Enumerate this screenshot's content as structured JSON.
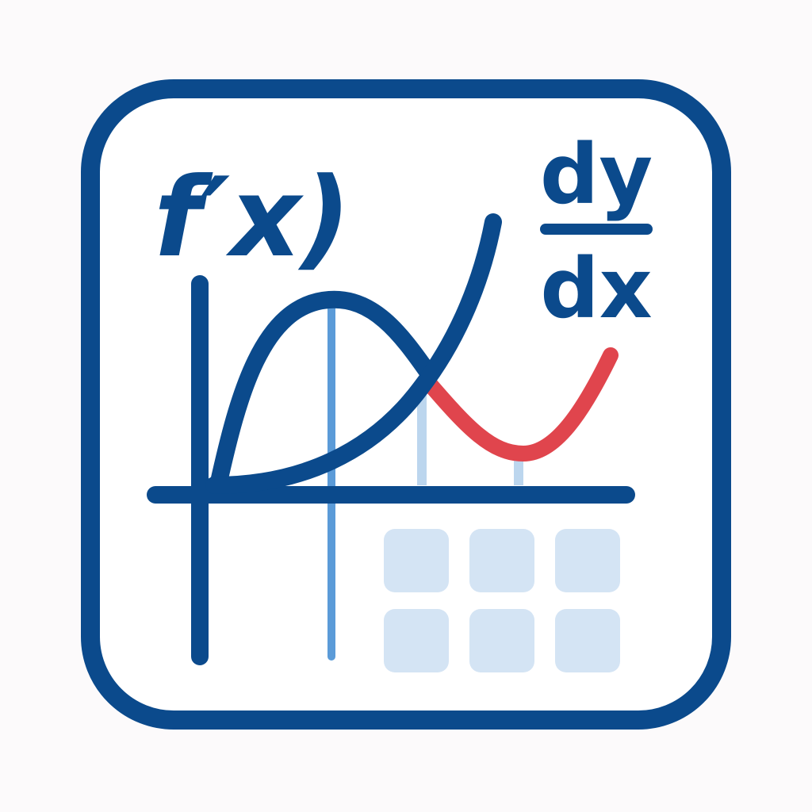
{
  "icon": {
    "function_label": "f′x)",
    "derivative_numerator": "dy",
    "derivative_denominator": "dx"
  },
  "colors": {
    "navy": "#0b4a8c",
    "mid_blue": "#5b9bd8",
    "light_blue": "#bcd6ee",
    "tile": "#d4e4f4",
    "red": "#e0454d",
    "background": "#fcfafb",
    "frame_fill": "#ffffff"
  },
  "keypad": {
    "rows": 2,
    "columns": 3
  }
}
